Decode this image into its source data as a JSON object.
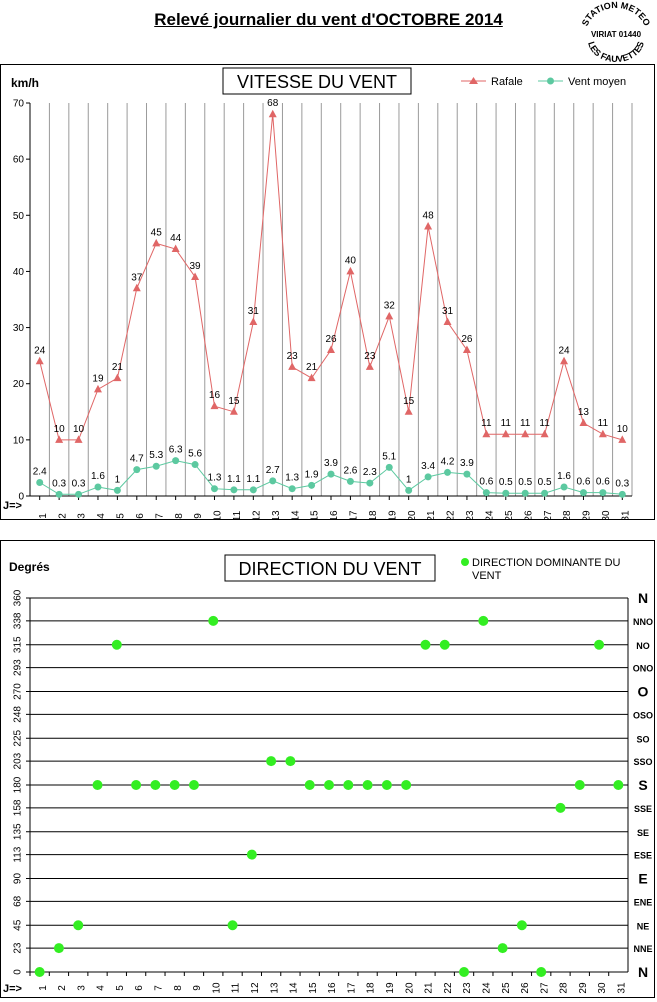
{
  "header": {
    "title": "Relevé journalier du vent d'OCTOBRE 2014",
    "stamp_top": "STATION METEO",
    "stamp_mid": "VIRIAT 01440",
    "stamp_bottom": "LES FAUVETTES"
  },
  "chart_data": [
    {
      "type": "line",
      "title": "VITESSE DU VENT",
      "ylabel": "km/h",
      "xlabel": "J=>",
      "ylim": [
        0,
        70
      ],
      "yticks": [
        0,
        10,
        20,
        30,
        40,
        50,
        60,
        70
      ],
      "grid": "vertical",
      "legend": "top-right",
      "x": [
        1,
        2,
        3,
        4,
        5,
        6,
        7,
        8,
        9,
        10,
        11,
        12,
        13,
        14,
        15,
        16,
        17,
        18,
        19,
        20,
        21,
        22,
        23,
        24,
        25,
        26,
        27,
        28,
        29,
        30,
        31
      ],
      "series": [
        {
          "name": "Rafale",
          "color": "#e06666",
          "marker": "triangle",
          "values": [
            24,
            10,
            10,
            19,
            21,
            37,
            45,
            44,
            39,
            16,
            15,
            31,
            68,
            23,
            21,
            26,
            40,
            23,
            32,
            15,
            48,
            31,
            26,
            11,
            11,
            11,
            11,
            24,
            13,
            11,
            10
          ],
          "labels": [
            "24",
            "10",
            "10",
            "19",
            "21",
            "37",
            "45",
            "44",
            "39",
            "16",
            "15",
            "31",
            "68",
            "23",
            "21",
            "26",
            "40",
            "23",
            "32",
            "15",
            "48",
            "31",
            "26",
            "11",
            "11",
            "11",
            "11",
            "24",
            "13",
            "11",
            "10"
          ]
        },
        {
          "name": "Vent moyen",
          "color": "#5cc9a0",
          "marker": "circle",
          "values": [
            2.4,
            0.3,
            0.3,
            1.6,
            1,
            4.7,
            5.3,
            6.3,
            5.6,
            1.3,
            1.1,
            1.1,
            2.7,
            1.3,
            1.9,
            3.9,
            2.6,
            2.3,
            5.1,
            1,
            3.4,
            4.2,
            3.9,
            0.6,
            0.5,
            0.5,
            0.5,
            1.6,
            0.6,
            0.6,
            0.3
          ],
          "labels": [
            "2.4",
            "0.3",
            "0.3",
            "1.6",
            "1",
            "4.7",
            "5.3",
            "6.3",
            "5.6",
            "1.3",
            "1.1",
            "1.1",
            "2.7",
            "1.3",
            "1.9",
            "3.9",
            "2.6",
            "2.3",
            "5.1",
            "1",
            "3.4",
            "4.2",
            "3.9",
            "0.6",
            "0.5",
            "0.5",
            "0.5",
            "1.6",
            "0.6",
            "0.6",
            "0.3"
          ]
        }
      ]
    },
    {
      "type": "scatter",
      "title": "DIRECTION DU VENT",
      "ylabel": "Degrés",
      "xlabel": "J=>",
      "ylim": [
        0,
        360
      ],
      "yticks": [
        0,
        23,
        45,
        68,
        90,
        113,
        135,
        158,
        180,
        203,
        225,
        248,
        270,
        293,
        315,
        338,
        360
      ],
      "direction_labels": [
        "N",
        "NNE",
        "NE",
        "ENE",
        "E",
        "ESE",
        "SE",
        "SSE",
        "S",
        "SSO",
        "SO",
        "OSO",
        "O",
        "ONO",
        "NO",
        "NNO",
        "N"
      ],
      "grid": "horizontal",
      "legend": "top-right",
      "x": [
        1,
        2,
        3,
        4,
        5,
        6,
        7,
        8,
        9,
        10,
        11,
        12,
        13,
        14,
        15,
        16,
        17,
        18,
        19,
        20,
        21,
        22,
        23,
        24,
        25,
        26,
        27,
        28,
        29,
        30,
        31
      ],
      "series": [
        {
          "name": "DIRECTION DOMINANTE DU VENT",
          "color": "#33ee22",
          "values": [
            0,
            23,
            45,
            180,
            315,
            180,
            180,
            180,
            180,
            338,
            45,
            113,
            203,
            203,
            180,
            180,
            180,
            180,
            180,
            180,
            315,
            315,
            0,
            338,
            23,
            45,
            0,
            158,
            180,
            315,
            180
          ]
        }
      ]
    }
  ]
}
